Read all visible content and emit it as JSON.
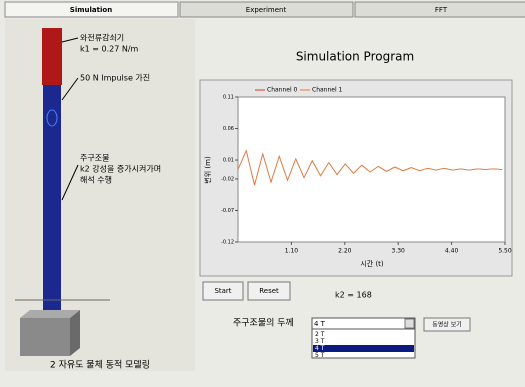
{
  "tabs": [
    "Simulation",
    "Experiment",
    "FFT"
  ],
  "model": {
    "annotations": [
      [
        "와전류감쇠기",
        "k1 = 0.27 N/m"
      ],
      [
        "50 N Impulse 가진"
      ],
      [
        "주구조물",
        "k2 강성을 증가시켜가며",
        "해석 수행"
      ]
    ],
    "caption": "2 자유도 물체 동적 모델링"
  },
  "title": "Simulation Program",
  "chart_data": {
    "type": "line",
    "xlabel": "시간 (t)",
    "ylabel": "변위 (m)",
    "x": [
      0,
      0.17,
      0.34,
      0.51,
      0.68,
      0.85,
      1.02,
      1.19,
      1.36,
      1.53,
      1.7,
      1.87,
      2.04,
      2.21,
      2.38,
      2.55,
      2.72,
      2.89,
      3.06,
      3.23,
      3.4,
      3.57,
      3.74,
      3.91,
      4.08,
      4.25,
      4.42,
      4.59,
      4.76,
      4.93,
      5.1,
      5.27,
      5.44
    ],
    "series": [
      {
        "name": "Channel 0",
        "color": "#d04020",
        "values": [
          -0.005,
          0.025,
          -0.03,
          0.02,
          -0.025,
          0.016,
          -0.022,
          0.012,
          -0.018,
          0.009,
          -0.015,
          0.006,
          -0.013,
          0.004,
          -0.011,
          0.002,
          -0.009,
          0,
          -0.008,
          -0.001,
          -0.007,
          -0.002,
          -0.007,
          -0.003,
          -0.006,
          -0.003,
          -0.006,
          -0.004,
          -0.006,
          -0.004,
          -0.005,
          -0.004,
          -0.005
        ]
      },
      {
        "name": "Channel 1",
        "color": "#e08040",
        "values": [
          -0.005,
          0.025,
          -0.03,
          0.02,
          -0.025,
          0.016,
          -0.022,
          0.012,
          -0.018,
          0.009,
          -0.015,
          0.006,
          -0.013,
          0.004,
          -0.011,
          0.002,
          -0.009,
          0,
          -0.008,
          -0.001,
          -0.007,
          -0.002,
          -0.007,
          -0.003,
          -0.006,
          -0.003,
          -0.006,
          -0.004,
          -0.006,
          -0.004,
          -0.005,
          -0.004,
          -0.005
        ]
      }
    ],
    "xlim": [
      0,
      5.5
    ],
    "ylim": [
      -0.12,
      0.11
    ],
    "xticks": [
      {
        "value": 1.1,
        "label": "1.10"
      },
      {
        "value": 2.2,
        "label": "2.20"
      },
      {
        "value": 3.3,
        "label": "3.30"
      },
      {
        "value": 4.4,
        "label": "4.40"
      },
      {
        "value": 5.5,
        "label": "5.50"
      }
    ],
    "yticks": [
      0.11,
      0.06,
      0.01,
      -0.02,
      -0.07,
      -0.12
    ]
  },
  "controls": {
    "start": "Start",
    "reset": "Reset",
    "k2": "k2 = 168",
    "thickness_label": "주구조물의 두께",
    "selected": "4 T",
    "options": [
      "2 T",
      "3 T",
      "4 T",
      "5 T"
    ],
    "video": "동영상 보기"
  }
}
